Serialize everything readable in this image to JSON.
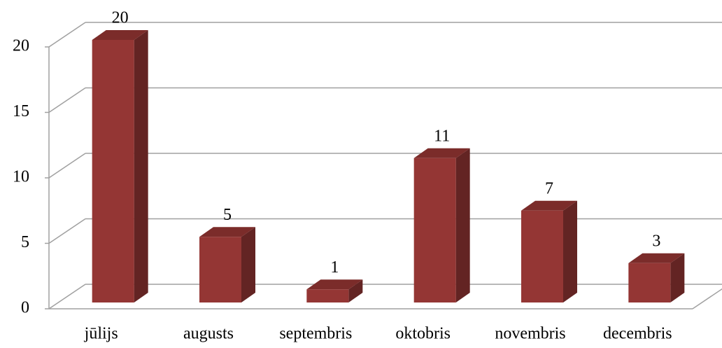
{
  "chart_data": {
    "type": "bar",
    "categories": [
      "jūlijs",
      "augusts",
      "septembris",
      "oktobris",
      "novembris",
      "decembris"
    ],
    "values": [
      20,
      5,
      1,
      11,
      7,
      3
    ],
    "color": "#943634",
    "ylim": [
      0,
      20
    ],
    "yticks": [
      0,
      5,
      10,
      15,
      20
    ],
    "grid": true
  }
}
